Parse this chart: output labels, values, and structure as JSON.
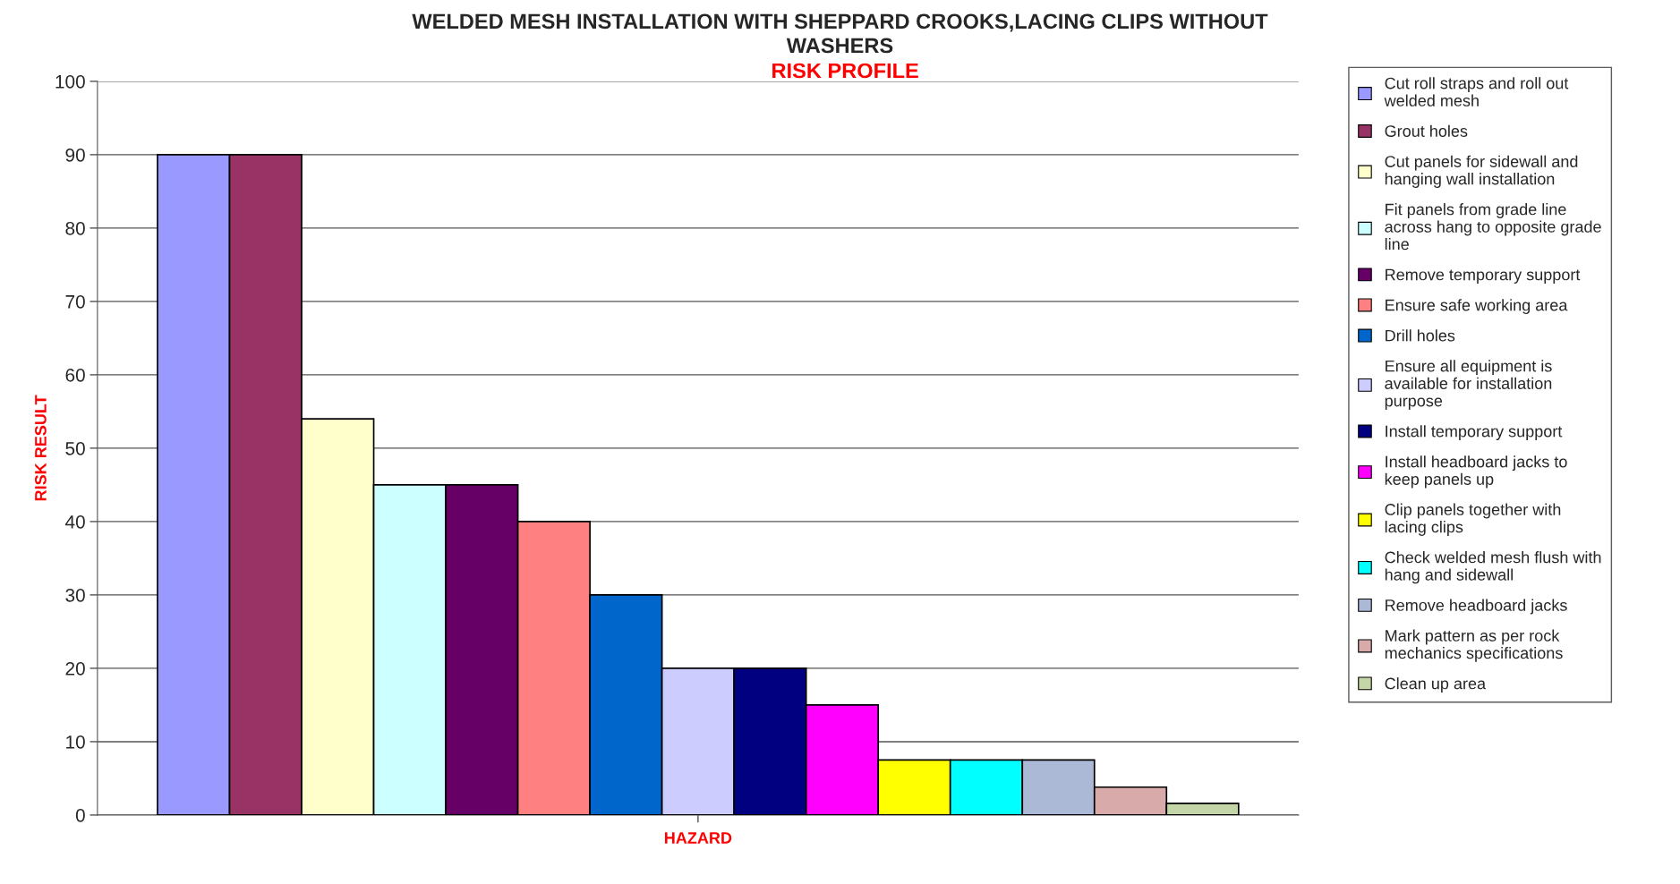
{
  "chart_data": {
    "type": "bar",
    "title": "WELDED MESH INSTALLATION WITH SHEPPARD CROOKS,LACING CLIPS WITHOUT WASHERS",
    "subtitle": "RISK PROFILE",
    "xlabel": "HAZARD",
    "ylabel": "RISK RESULT",
    "categories": [
      null
    ],
    "series": [
      {
        "name": "Cut roll straps and roll out welded mesh",
        "color": "#9999ff",
        "values": [
          90
        ]
      },
      {
        "name": "Grout holes",
        "color": "#993366",
        "values": [
          90
        ]
      },
      {
        "name": "Cut panels for sidewall and hanging wall installation",
        "color": "#ffffcc",
        "values": [
          54
        ]
      },
      {
        "name": "Fit panels from grade line across hang to opposite grade line",
        "color": "#ccffff",
        "values": [
          45
        ]
      },
      {
        "name": "Remove temporary support",
        "color": "#660066",
        "values": [
          45
        ]
      },
      {
        "name": "Ensure safe working area",
        "color": "#ff8080",
        "values": [
          40
        ]
      },
      {
        "name": "Drill holes",
        "color": "#0066cc",
        "values": [
          30
        ]
      },
      {
        "name": "Ensure all equipment is available for installation purpose",
        "color": "#ccccff",
        "values": [
          20
        ]
      },
      {
        "name": "Install temporary support",
        "color": "#000080",
        "values": [
          20
        ]
      },
      {
        "name": "Install headboard jacks to keep panels up",
        "color": "#ff00ff",
        "values": [
          15
        ]
      },
      {
        "name": "Clip panels together with lacing clips",
        "color": "#ffff00",
        "values": [
          7.5
        ]
      },
      {
        "name": "Check welded mesh flush with hang and sidewall",
        "color": "#00ffff",
        "values": [
          7.5
        ]
      },
      {
        "name": "Remove headboard jacks",
        "color": "#abb9d6",
        "values": [
          7.5
        ]
      },
      {
        "name": "Mark pattern as per rock mechanics specifications",
        "color": "#d9aaaa",
        "values": [
          3.8
        ]
      },
      {
        "name": "Clean up area",
        "color": "#c4d6a8",
        "values": [
          1.6
        ]
      }
    ],
    "ylim": [
      0,
      100
    ],
    "yticks": [
      0,
      10,
      20,
      30,
      40,
      50,
      60,
      70,
      80,
      90,
      100
    ],
    "grid": "y",
    "legend": "right"
  }
}
